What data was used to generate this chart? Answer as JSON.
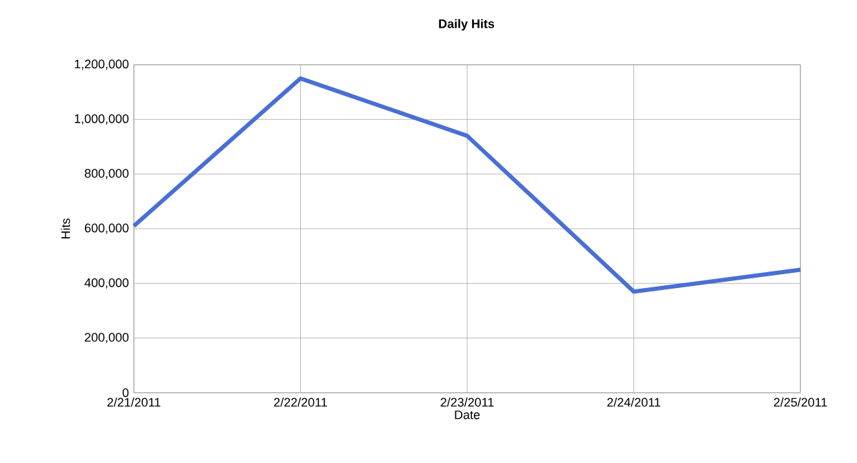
{
  "chart_data": {
    "type": "line",
    "title": "Daily Hits",
    "xlabel": "Date",
    "ylabel": "Hits",
    "categories": [
      "2/21/2011",
      "2/22/2011",
      "2/23/2011",
      "2/24/2011",
      "2/25/2011"
    ],
    "series": [
      {
        "color": "#4a6fd4",
        "values": [
          610000,
          1150000,
          940000,
          370000,
          450000
        ]
      }
    ],
    "ylim": [
      0,
      1200000
    ],
    "yticks": [
      {
        "value": 0,
        "label": "0"
      },
      {
        "value": 200000,
        "label": "200,000"
      },
      {
        "value": 400000,
        "label": "400,000"
      },
      {
        "value": 600000,
        "label": "600,000"
      },
      {
        "value": 800000,
        "label": "800,000"
      },
      {
        "value": 1000000,
        "label": "1,000,000"
      },
      {
        "value": 1200000,
        "label": "1,200,000"
      }
    ],
    "grid": true,
    "marker": "none",
    "line_style": "solid"
  }
}
